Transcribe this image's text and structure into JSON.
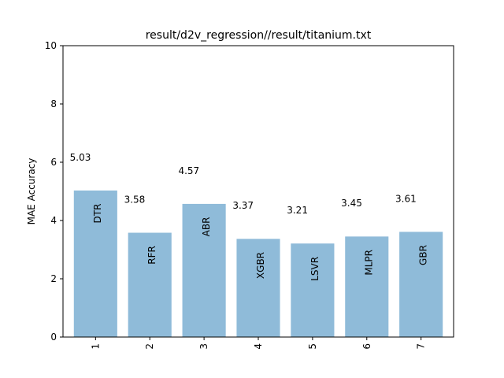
{
  "chart_data": {
    "type": "bar",
    "title": "result/d2v_regression//result/titanium.txt",
    "xlabel": "",
    "ylabel": "MAE Accuracy",
    "categories": [
      "1",
      "2",
      "3",
      "4",
      "5",
      "6",
      "7"
    ],
    "values": [
      5.03,
      3.58,
      4.57,
      3.37,
      3.21,
      3.45,
      3.61
    ],
    "value_labels": [
      "5.03",
      "3.58",
      "4.57",
      "3.37",
      "3.21",
      "3.45",
      "3.61"
    ],
    "bar_labels": [
      "DTR",
      "RFR",
      "ABR",
      "XGBR",
      "LSVR",
      "MLPR",
      "GBR"
    ],
    "ylim": [
      0,
      10
    ],
    "yticks": [
      "0",
      "2",
      "4",
      "6",
      "8",
      "10"
    ],
    "bar_color": "#8fbbd9",
    "grid": false
  }
}
